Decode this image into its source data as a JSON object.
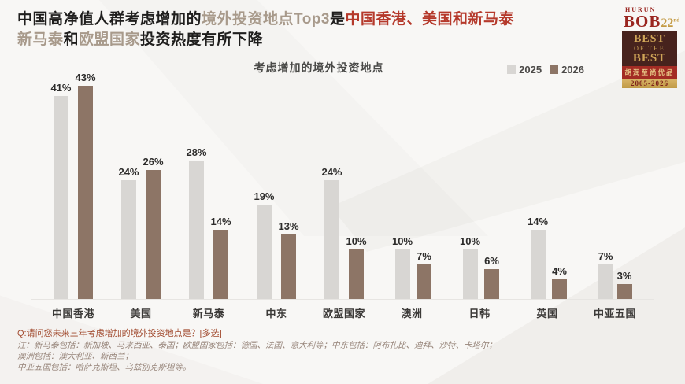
{
  "colors": {
    "bar_2025": "#d8d6d3",
    "bar_2026": "#8d7566",
    "title_dark": "#1f1e1d",
    "title_tan": "#a89a8b",
    "title_red": "#b5392b"
  },
  "header": {
    "title_lines": [
      {
        "segments": [
          {
            "t": "中国高净值人群考虑增加的",
            "c": "dark"
          },
          {
            "t": "境外投资地点Top3",
            "c": "tan"
          },
          {
            "t": "是",
            "c": "dark"
          },
          {
            "t": "中国香港、美国和新马泰",
            "c": "red"
          }
        ]
      },
      {
        "segments": [
          {
            "t": "新马泰",
            "c": "tan"
          },
          {
            "t": "和",
            "c": "dark"
          },
          {
            "t": "欧盟国家",
            "c": "tan"
          },
          {
            "t": "投资热度有所下降",
            "c": "dark"
          }
        ]
      }
    ],
    "logo": {
      "brand": "HURUN",
      "name": "BOB",
      "edition": "22",
      "edition_suffix": "nd",
      "best_line1": "BEST",
      "best_line2": "OF THE",
      "best_line3": "BEST",
      "cn_name": "胡润至尚优品",
      "years": "2005-2026"
    }
  },
  "chart_data": {
    "type": "bar",
    "title": "考虑增加的境外投资地点",
    "categories": [
      "中国香港",
      "美国",
      "新马泰",
      "中东",
      "欧盟国家",
      "澳洲",
      "日韩",
      "英国",
      "中亚五国"
    ],
    "series": [
      {
        "name": "2025",
        "color": "#d8d6d3",
        "values": [
          41,
          24,
          28,
          19,
          24,
          10,
          10,
          14,
          7
        ]
      },
      {
        "name": "2026",
        "color": "#8d7566",
        "values": [
          43,
          26,
          14,
          13,
          10,
          7,
          6,
          4,
          3
        ]
      }
    ],
    "unit": "%",
    "ylim": [
      0,
      45
    ],
    "grid": false,
    "legend_position": "top-right",
    "value_labels": true
  },
  "footer": {
    "question": "Q:请问您未来三年考虑增加的境外投资地点是？[多选]",
    "notes": [
      "注：新马泰包括：新加坡、马来西亚、泰国；欧盟国家包括：德国、法国、意大利等；中东包括：阿布扎比、迪拜、沙特、卡塔尔；",
      "澳洲包括：澳大利亚、新西兰；",
      "中亚五国包括：哈萨克斯坦、乌兹别克斯坦等。"
    ]
  }
}
